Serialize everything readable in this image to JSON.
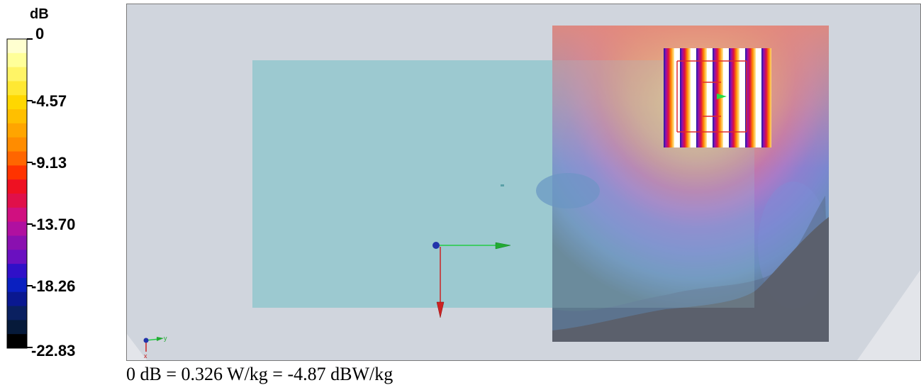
{
  "legend": {
    "unit": "dB",
    "ticks": [
      "0",
      "-4.57",
      "-9.13",
      "-13.70",
      "-18.26",
      "-22.83"
    ],
    "colors": [
      "#ffffd0",
      "#ffff99",
      "#fff466",
      "#ffe833",
      "#ffd700",
      "#ffbf00",
      "#ffa500",
      "#ff8c00",
      "#ff6600",
      "#ff3300",
      "#ee1122",
      "#e0104a",
      "#d01080",
      "#b010a0",
      "#8a10b0",
      "#6a10c0",
      "#3010c8",
      "#0a20c0",
      "#0a1890",
      "#0a2060",
      "#061a3a",
      "#000000"
    ]
  },
  "axes": {
    "x_label": "x",
    "y_label": "y"
  },
  "caption": "0 dB = 0.326 W/kg = -4.87 dBW/kg"
}
